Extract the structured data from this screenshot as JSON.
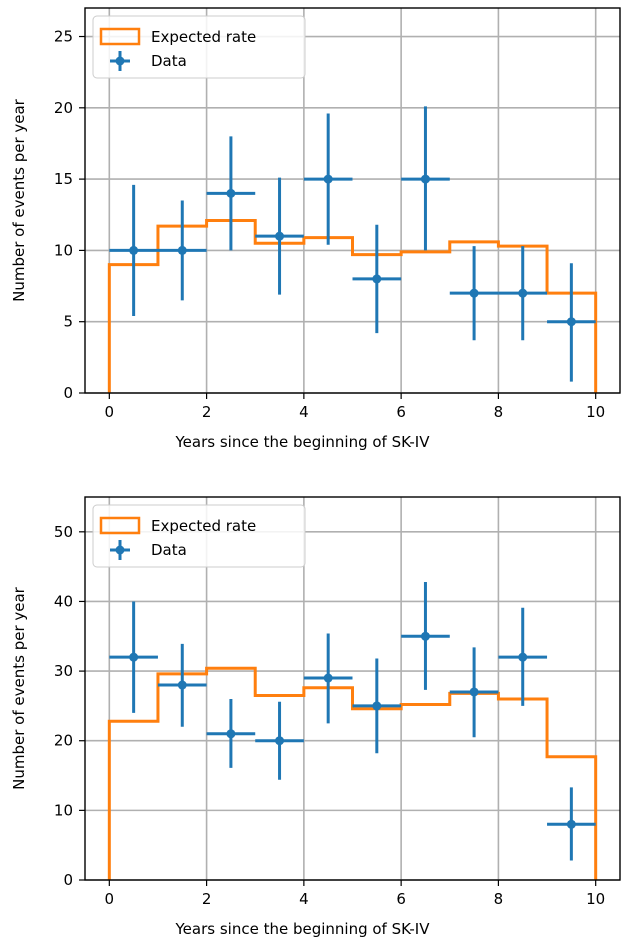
{
  "chart_data": [
    {
      "type": "step+errorbar",
      "xlabel": "Years since the beginning of SK-IV",
      "ylabel": "Number of events per year",
      "xlim": [
        -0.5,
        10.5
      ],
      "ylim": [
        0,
        27
      ],
      "xticks": [
        0,
        2,
        4,
        6,
        8,
        10
      ],
      "yticks": [
        0,
        5,
        10,
        15,
        20,
        25
      ],
      "grid": true,
      "legend": {
        "placement": "upper-left",
        "entries": [
          "Expected rate",
          "Data"
        ]
      },
      "colors": {
        "expected": "#ff7f0e",
        "data": "#1f77b4"
      },
      "expected_rate": {
        "name": "Expected rate",
        "bin_edges": [
          0,
          1,
          2,
          3,
          4,
          5,
          6,
          7,
          8,
          9,
          10
        ],
        "values": [
          9.0,
          11.7,
          12.1,
          10.5,
          10.9,
          9.7,
          9.9,
          10.6,
          10.3,
          7.0
        ]
      },
      "data": {
        "name": "Data",
        "x": [
          0.5,
          1.5,
          2.5,
          3.5,
          4.5,
          5.5,
          6.5,
          7.5,
          8.5,
          9.5
        ],
        "y": [
          10,
          10,
          14,
          11,
          15,
          8,
          15,
          7,
          7,
          5
        ],
        "yerr_low": [
          4.6,
          3.5,
          4.0,
          4.1,
          4.6,
          3.8,
          5.0,
          3.3,
          3.3,
          4.2
        ],
        "yerr_high": [
          4.6,
          3.5,
          4.0,
          4.1,
          4.6,
          3.8,
          5.1,
          3.3,
          3.3,
          4.1
        ],
        "xerr": 0.5
      }
    },
    {
      "type": "step+errorbar",
      "xlabel": "Years since the beginning of SK-IV",
      "ylabel": "Number of events per year",
      "xlim": [
        -0.5,
        10.5
      ],
      "ylim": [
        0,
        55
      ],
      "xticks": [
        0,
        2,
        4,
        6,
        8,
        10
      ],
      "yticks": [
        0,
        10,
        20,
        30,
        40,
        50
      ],
      "grid": true,
      "legend": {
        "placement": "upper-left",
        "entries": [
          "Expected rate",
          "Data"
        ]
      },
      "colors": {
        "expected": "#ff7f0e",
        "data": "#1f77b4"
      },
      "expected_rate": {
        "name": "Expected rate",
        "bin_edges": [
          0,
          1,
          2,
          3,
          4,
          5,
          6,
          7,
          8,
          9,
          10
        ],
        "values": [
          22.8,
          29.6,
          30.4,
          26.5,
          27.6,
          24.6,
          25.2,
          26.8,
          26.0,
          17.7
        ]
      },
      "data": {
        "name": "Data",
        "x": [
          0.5,
          1.5,
          2.5,
          3.5,
          4.5,
          5.5,
          6.5,
          7.5,
          8.5,
          9.5
        ],
        "y": [
          32,
          28,
          21,
          20,
          29,
          25,
          35,
          27,
          32,
          8
        ],
        "yerr_low": [
          8.0,
          6.0,
          4.9,
          5.6,
          6.5,
          6.8,
          7.7,
          6.5,
          7.0,
          5.2
        ],
        "yerr_high": [
          8.0,
          5.9,
          5.0,
          5.6,
          6.4,
          6.8,
          7.8,
          6.4,
          7.1,
          5.3
        ]
      }
    }
  ]
}
